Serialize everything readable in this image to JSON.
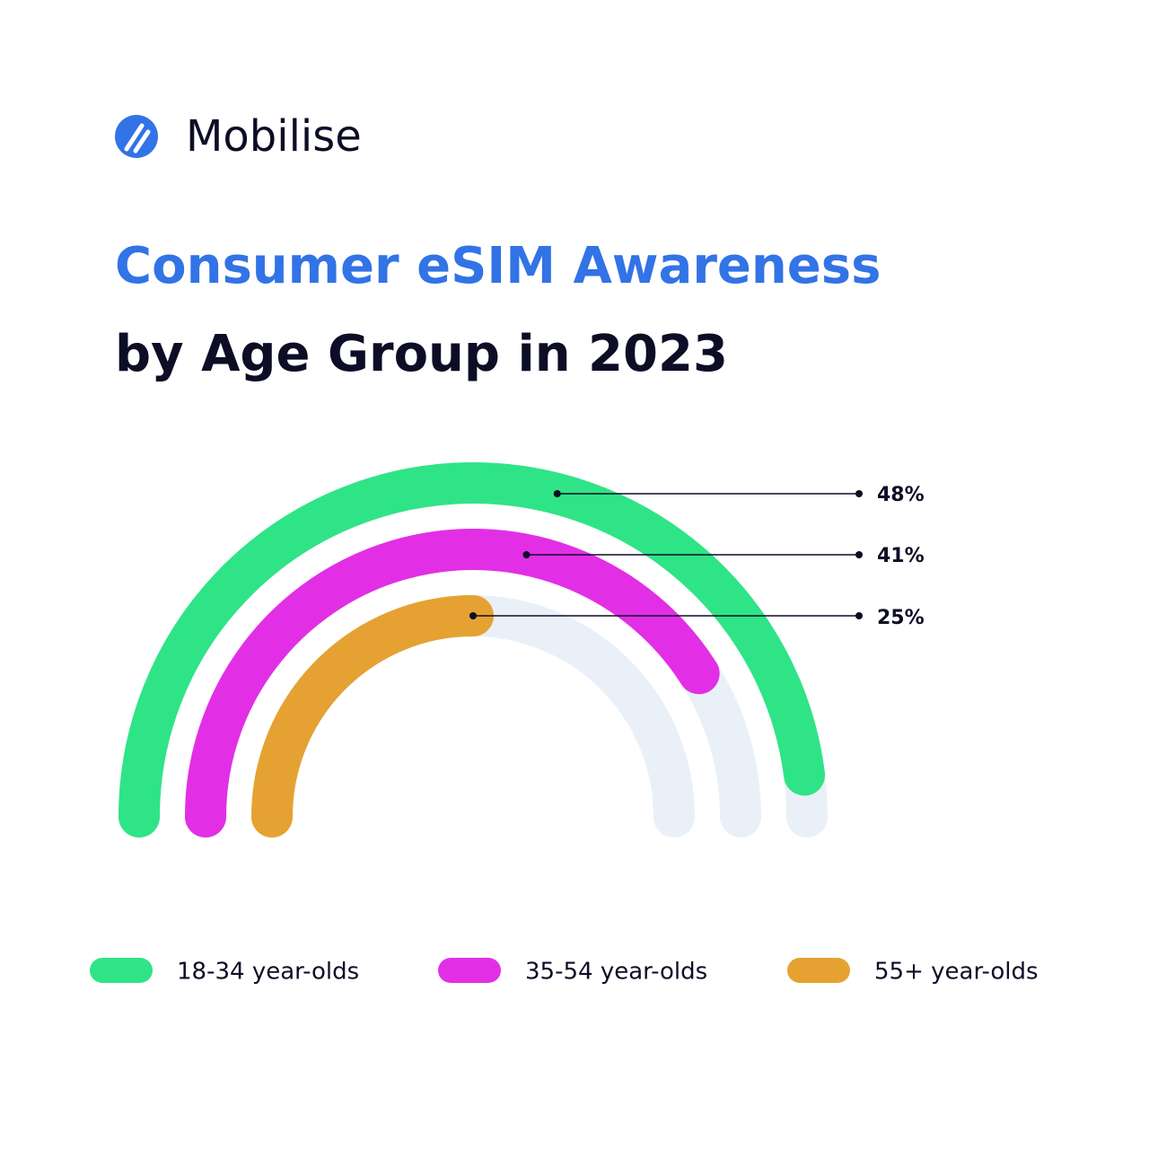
{
  "brand": "Mobilise",
  "chart_data": {
    "type": "radial-bar",
    "title": "Consumer eSIM Awareness",
    "subtitle": "by Age Group in 2023",
    "categories": [
      "18-34 year-olds",
      "35-54 year-olds",
      "55+ year-olds"
    ],
    "values": [
      48,
      41,
      25
    ],
    "value_labels": [
      "48%",
      "41%",
      "25%"
    ],
    "colors": [
      "#2fe486",
      "#e22fe6",
      "#e5a232"
    ],
    "track_color": "#eaf0f8",
    "ylim": [
      0,
      50
    ]
  }
}
